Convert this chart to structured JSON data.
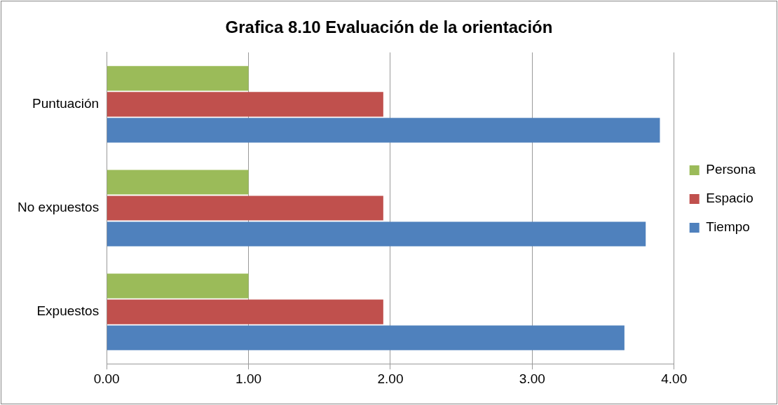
{
  "chart_data": {
    "type": "bar",
    "orientation": "horizontal",
    "title": "Grafica 8.10 Evaluación de la orientación",
    "categories": [
      "Puntuación",
      "No expuestos",
      "Expuestos"
    ],
    "series": [
      {
        "name": "Persona",
        "color": "#9bbb59",
        "values": [
          1.0,
          1.0,
          1.0
        ]
      },
      {
        "name": "Espacio",
        "color": "#c0504d",
        "values": [
          1.95,
          1.95,
          1.95
        ]
      },
      {
        "name": "Tiempo",
        "color": "#4f81bd",
        "values": [
          3.9,
          3.8,
          3.65
        ]
      }
    ],
    "xlim": [
      0,
      4
    ],
    "xticks": [
      {
        "value": 0,
        "label": "0.00"
      },
      {
        "value": 1,
        "label": "1.00"
      },
      {
        "value": 2,
        "label": "2.00"
      },
      {
        "value": 3,
        "label": "3.00"
      },
      {
        "value": 4,
        "label": "4.00"
      }
    ],
    "grid": "x",
    "legend": "right"
  }
}
